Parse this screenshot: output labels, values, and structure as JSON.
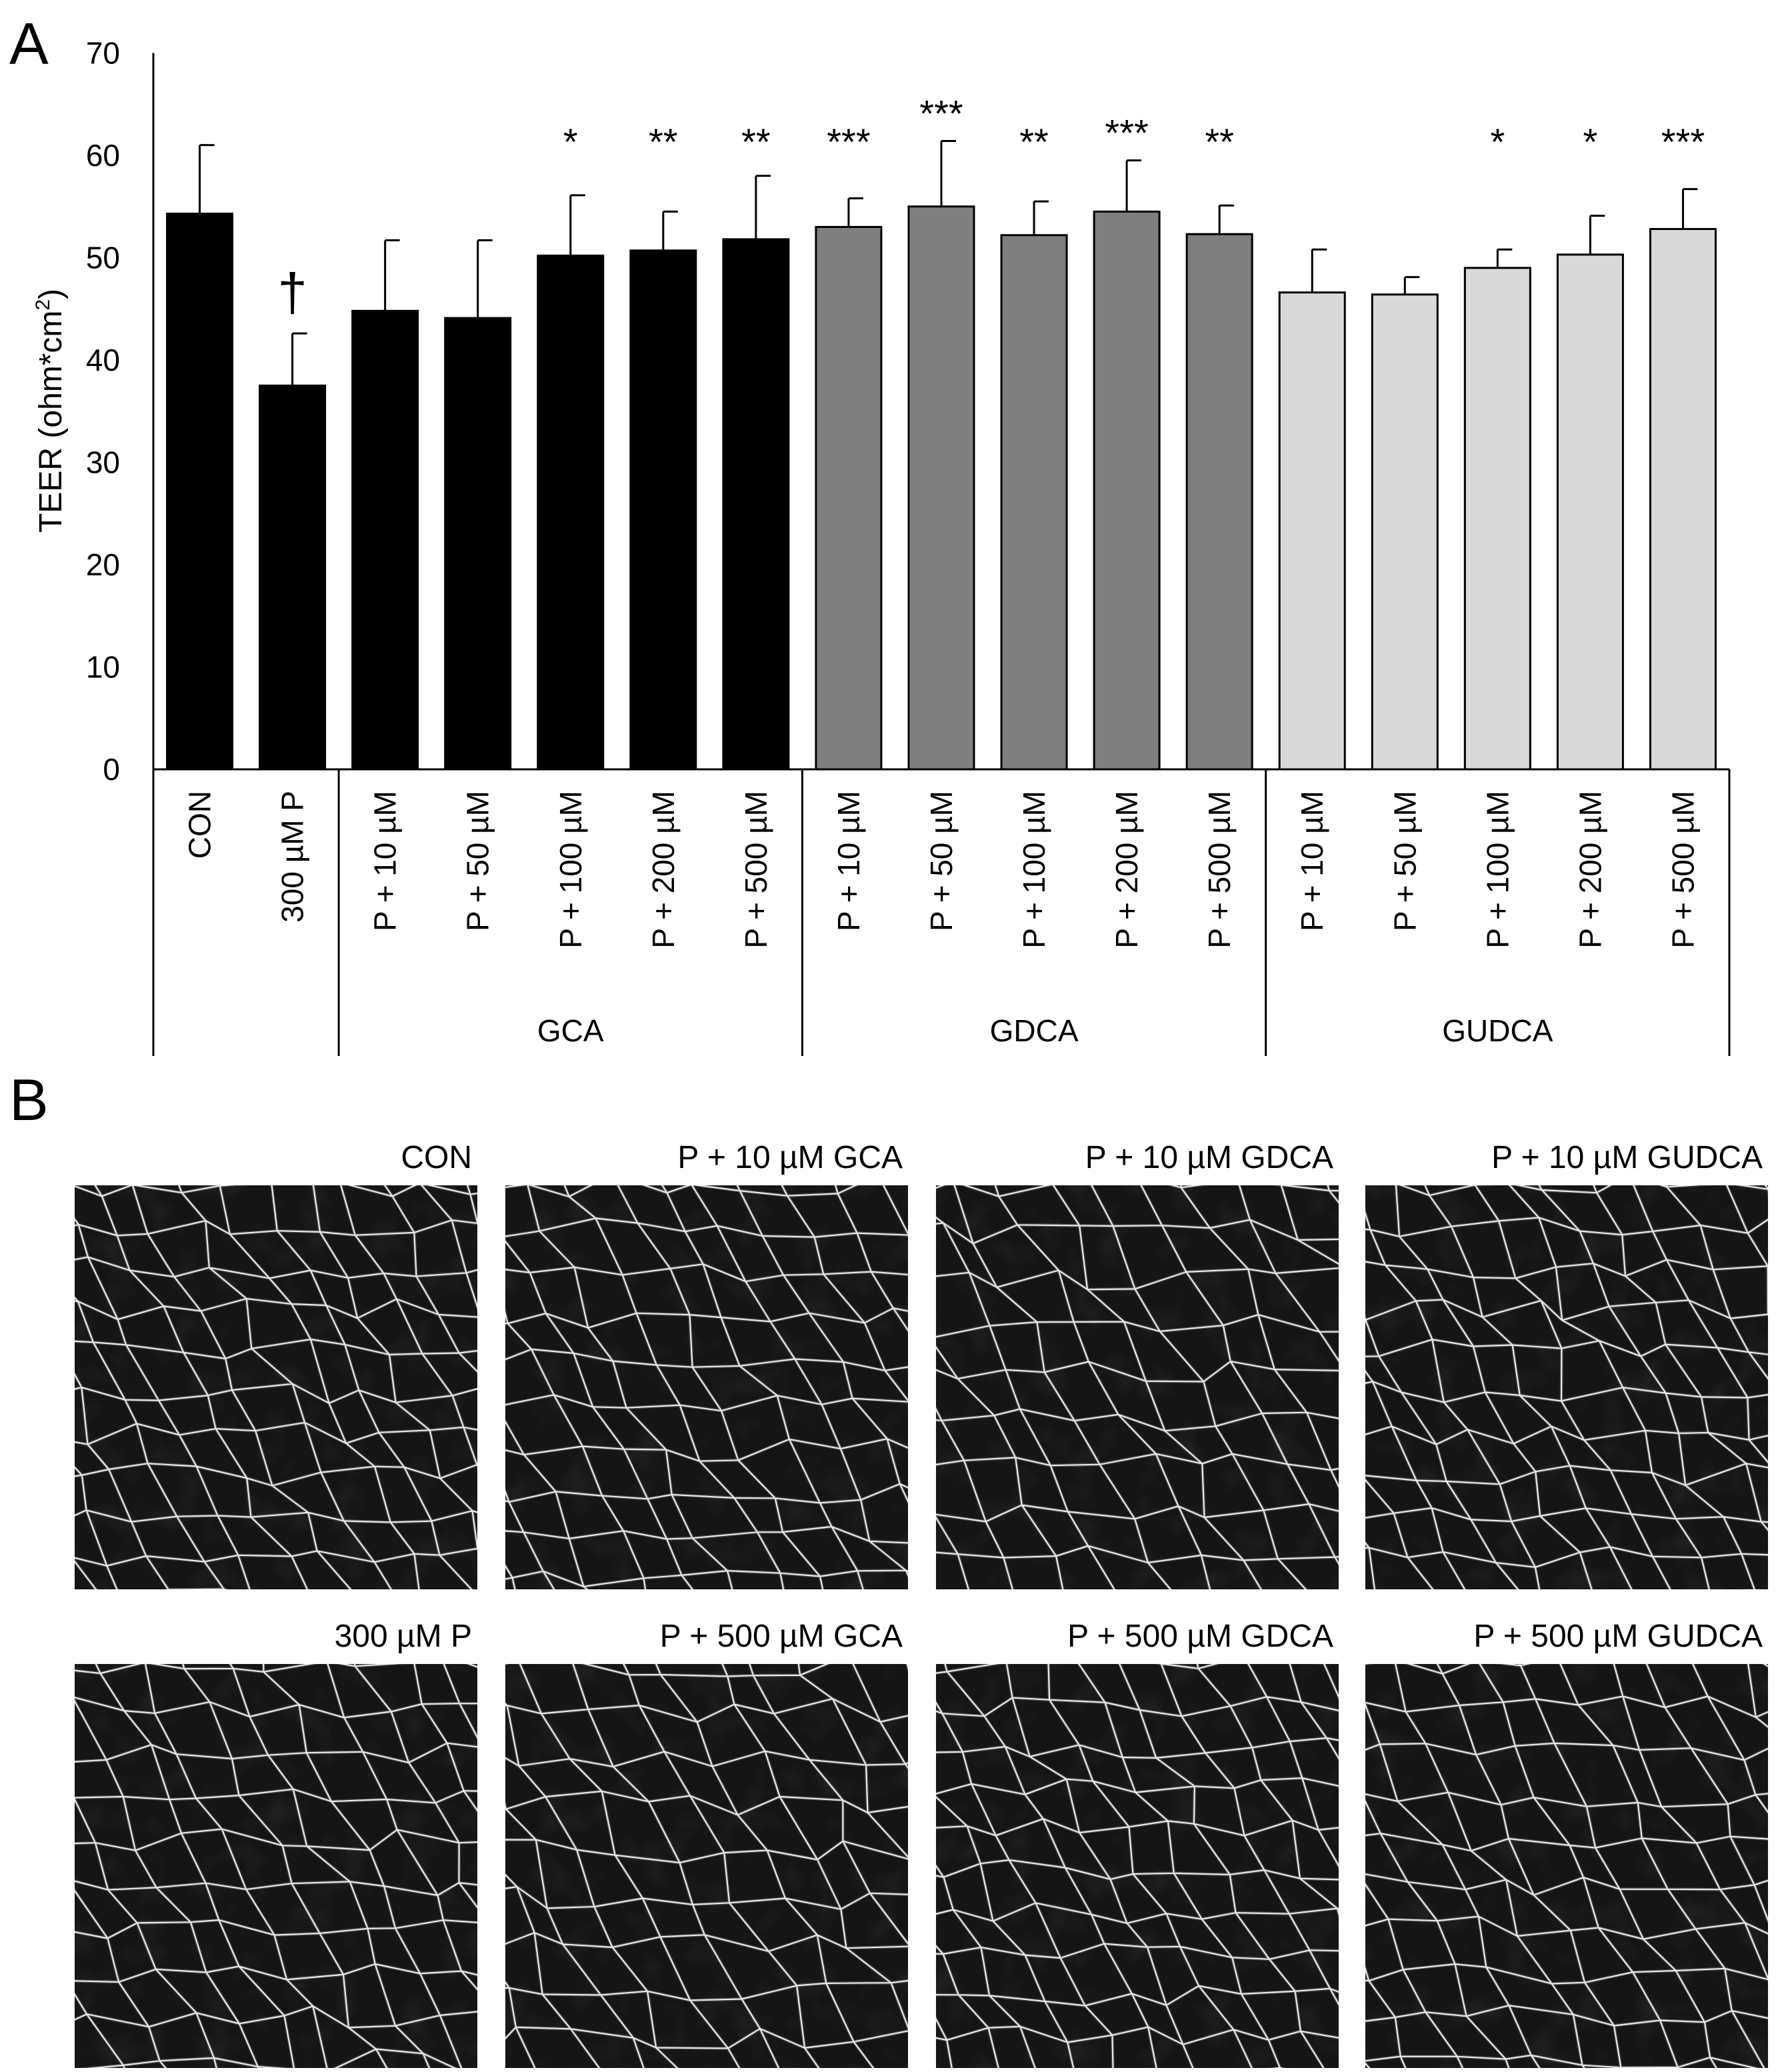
{
  "panels": {
    "a": "A",
    "b": "B"
  },
  "chart_data": {
    "type": "bar",
    "ylabel_main": "TEER (ohm*cm",
    "ylabel_sup": "2",
    "ylabel_end": ")",
    "ylim": [
      0,
      70
    ],
    "yticks": [
      0,
      10,
      20,
      30,
      40,
      50,
      60,
      70
    ],
    "grid": false,
    "categories": [
      "CON",
      "300 µM P",
      "P + 10 µM",
      "P + 50 µM",
      "P + 100 µM",
      "P + 200 µM",
      "P + 500 µM",
      "P + 10 µM",
      "P + 50 µM",
      "P + 100 µM",
      "P + 200 µM",
      "P + 500 µM",
      "P + 10 µM",
      "P + 50 µM",
      "P + 100 µM",
      "P + 200 µM",
      "P + 500 µM"
    ],
    "values": [
      54.3,
      37.5,
      44.8,
      44.1,
      50.2,
      50.7,
      51.8,
      53.0,
      55.0,
      52.2,
      54.5,
      52.3,
      46.6,
      46.4,
      49.0,
      50.3,
      52.8
    ],
    "errors": [
      6.7,
      5.1,
      6.9,
      7.6,
      5.9,
      3.8,
      6.2,
      2.8,
      6.4,
      3.3,
      5.0,
      2.8,
      4.2,
      1.7,
      1.8,
      3.8,
      3.9
    ],
    "annotations": [
      "",
      "†",
      "",
      "",
      "*",
      "**",
      "**",
      "***",
      "***",
      "**",
      "***",
      "**",
      "",
      "",
      "*",
      "*",
      "***"
    ],
    "bar_colors": [
      "#000000",
      "#000000",
      "#000000",
      "#000000",
      "#000000",
      "#000000",
      "#000000",
      "#7f7f7f",
      "#7f7f7f",
      "#7f7f7f",
      "#7f7f7f",
      "#7f7f7f",
      "#d9d9d9",
      "#d9d9d9",
      "#d9d9d9",
      "#d9d9d9",
      "#d9d9d9"
    ],
    "groups": [
      {
        "label": "",
        "start": 0,
        "end": 1
      },
      {
        "label": "GCA",
        "start": 2,
        "end": 6
      },
      {
        "label": "GDCA",
        "start": 7,
        "end": 11
      },
      {
        "label": "GUDCA",
        "start": 12,
        "end": 16
      }
    ]
  },
  "micrographs": [
    {
      "label": "CON"
    },
    {
      "label": "P + 10 µM GCA"
    },
    {
      "label": "P + 10 µM GDCA"
    },
    {
      "label": "P + 10 µM GUDCA"
    },
    {
      "label": "300 µM P"
    },
    {
      "label": "P + 500 µM GCA"
    },
    {
      "label": "P + 500 µM GDCA"
    },
    {
      "label": "P + 500 µM GUDCA"
    }
  ]
}
